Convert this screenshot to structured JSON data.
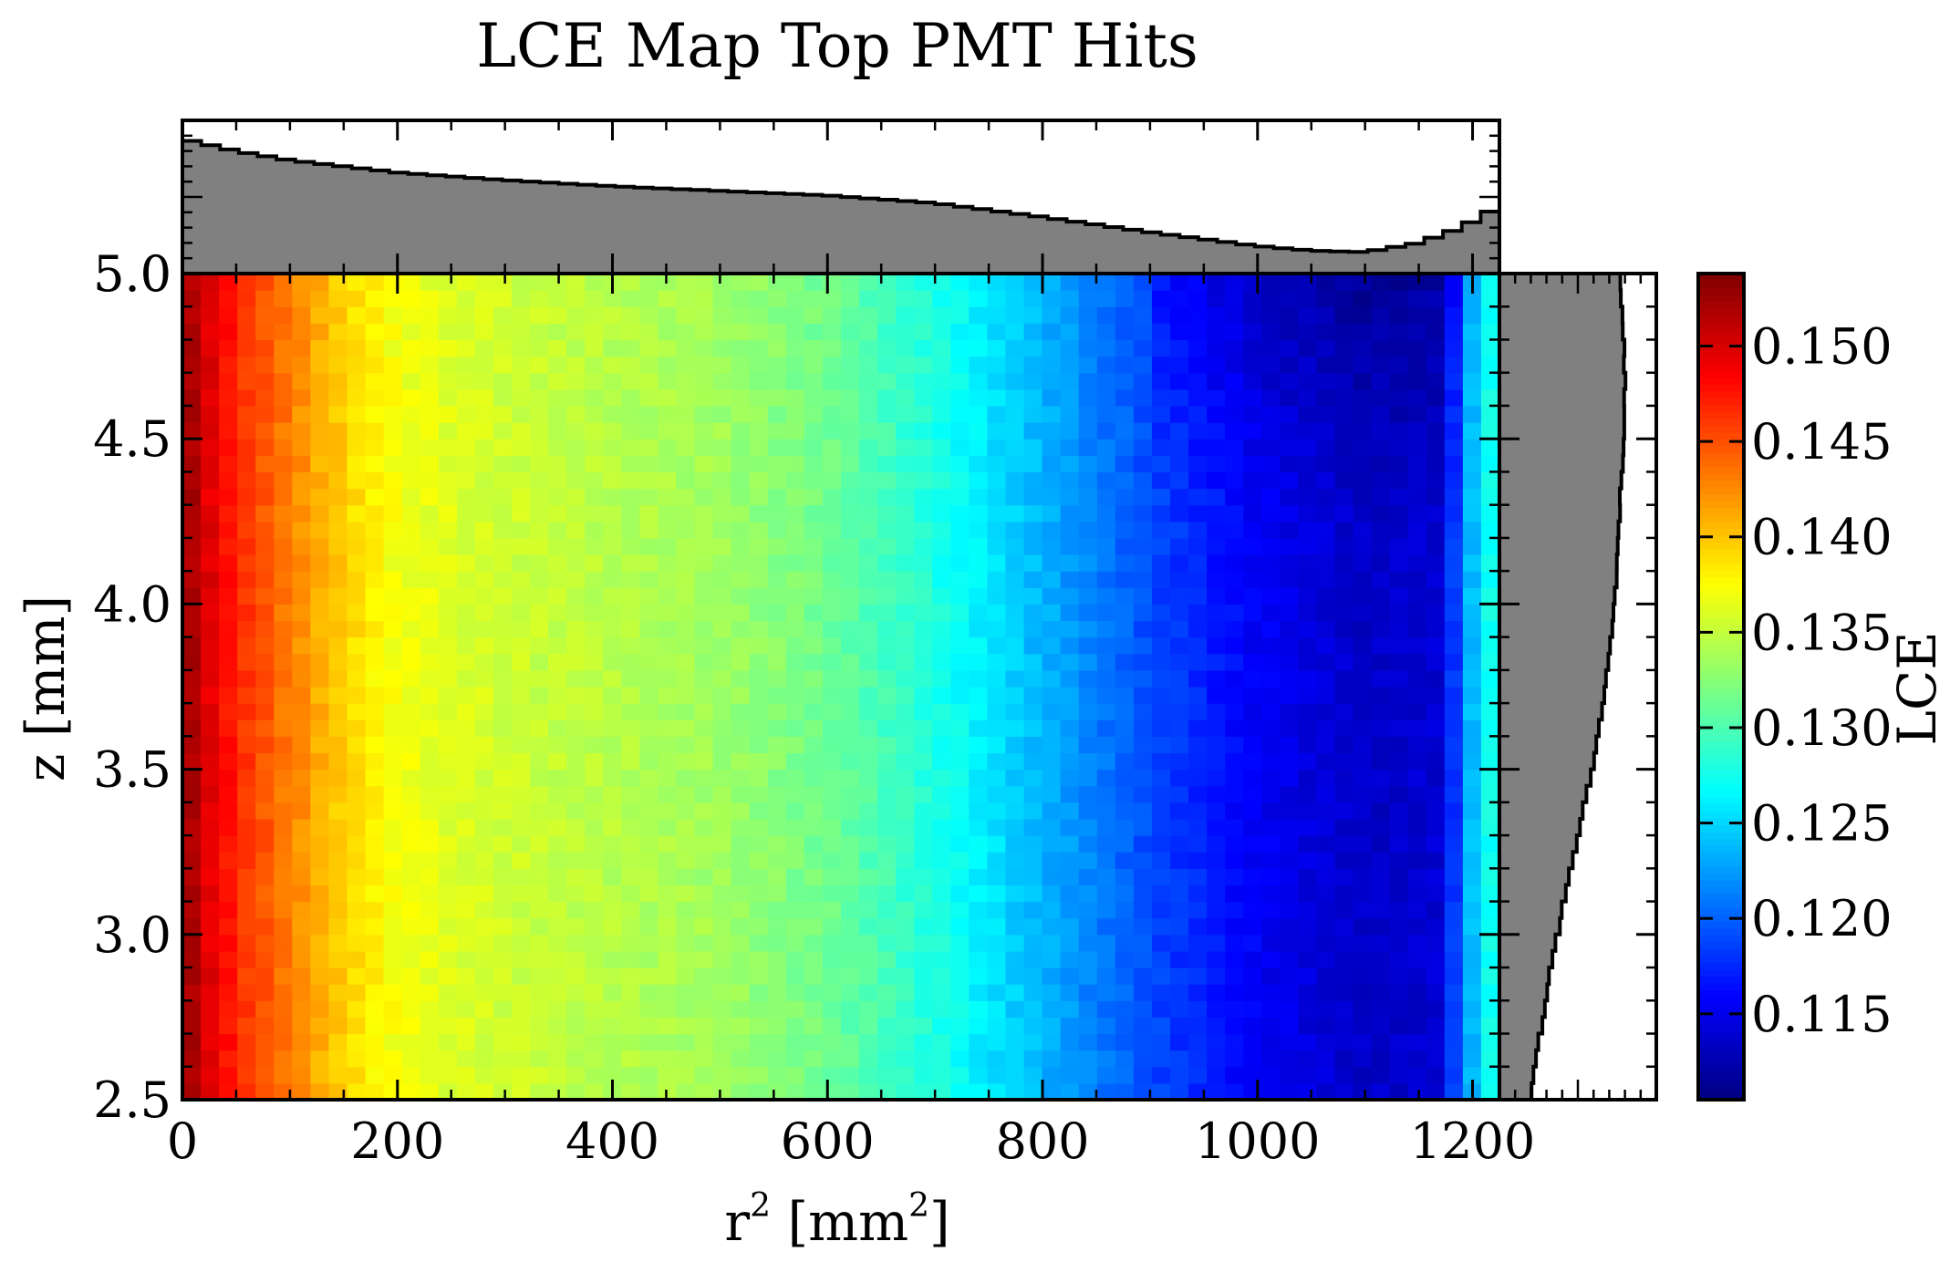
{
  "chart_data": {
    "type": "heatmap",
    "title": "LCE Map Top PMT Hits",
    "xlabel": "r",
    "xlabel_sup": "2",
    "xlabel_unit": " [mm",
    "xlabel_unit_sup": "2",
    "xlabel_close": "]",
    "ylabel": "z [mm]",
    "colorbar_label": "LCE",
    "colormap": "jet",
    "xlim": [
      0,
      1225
    ],
    "ylim": [
      2.5,
      5.0
    ],
    "clim": [
      0.1105,
      0.1538
    ],
    "x_ticks": [
      "0",
      "200",
      "400",
      "600",
      "800",
      "1000",
      "1200"
    ],
    "y_ticks": [
      "2.5",
      "3.0",
      "3.5",
      "4.0",
      "4.5",
      "5.0"
    ],
    "colorbar_ticks": [
      "0.115",
      "0.120",
      "0.125",
      "0.130",
      "0.135",
      "0.140",
      "0.145",
      "0.150"
    ],
    "top_marginal_ticks": [
      "5.0"
    ],
    "lce_profile_vs_r2": [
      {
        "r2": 0,
        "lce": 0.153
      },
      {
        "r2": 30,
        "lce": 0.149
      },
      {
        "r2": 60,
        "lce": 0.146
      },
      {
        "r2": 100,
        "lce": 0.143
      },
      {
        "r2": 150,
        "lce": 0.1395
      },
      {
        "r2": 200,
        "lce": 0.137
      },
      {
        "r2": 300,
        "lce": 0.1355
      },
      {
        "r2": 400,
        "lce": 0.1345
      },
      {
        "r2": 500,
        "lce": 0.1335
      },
      {
        "r2": 600,
        "lce": 0.1315
      },
      {
        "r2": 700,
        "lce": 0.128
      },
      {
        "r2": 800,
        "lce": 0.1235
      },
      {
        "r2": 900,
        "lce": 0.119
      },
      {
        "r2": 1000,
        "lce": 0.1155
      },
      {
        "r2": 1100,
        "lce": 0.1135
      },
      {
        "r2": 1170,
        "lce": 0.114
      },
      {
        "r2": 1200,
        "lce": 0.124
      },
      {
        "r2": 1225,
        "lce": 0.129
      }
    ],
    "top_marginal_profile": [
      {
        "r2": 0,
        "v": 0.88
      },
      {
        "r2": 50,
        "v": 0.8
      },
      {
        "r2": 100,
        "v": 0.74
      },
      {
        "r2": 200,
        "v": 0.66
      },
      {
        "r2": 300,
        "v": 0.61
      },
      {
        "r2": 400,
        "v": 0.57
      },
      {
        "r2": 500,
        "v": 0.54
      },
      {
        "r2": 600,
        "v": 0.51
      },
      {
        "r2": 700,
        "v": 0.46
      },
      {
        "r2": 800,
        "v": 0.37
      },
      {
        "r2": 900,
        "v": 0.27
      },
      {
        "r2": 1000,
        "v": 0.18
      },
      {
        "r2": 1050,
        "v": 0.15
      },
      {
        "r2": 1100,
        "v": 0.14
      },
      {
        "r2": 1150,
        "v": 0.2
      },
      {
        "r2": 1190,
        "v": 0.3
      },
      {
        "r2": 1225,
        "v": 0.44
      }
    ],
    "right_marginal_profile": [
      {
        "z": 2.5,
        "v": 0.19
      },
      {
        "z": 2.7,
        "v": 0.26
      },
      {
        "z": 2.9,
        "v": 0.33
      },
      {
        "z": 3.1,
        "v": 0.41
      },
      {
        "z": 3.3,
        "v": 0.5
      },
      {
        "z": 3.5,
        "v": 0.59
      },
      {
        "z": 3.7,
        "v": 0.66
      },
      {
        "z": 3.9,
        "v": 0.71
      },
      {
        "z": 4.1,
        "v": 0.75
      },
      {
        "z": 4.3,
        "v": 0.77
      },
      {
        "z": 4.5,
        "v": 0.795
      },
      {
        "z": 4.7,
        "v": 0.8
      },
      {
        "z": 4.9,
        "v": 0.78
      },
      {
        "z": 5.0,
        "v": 0.76
      }
    ]
  }
}
